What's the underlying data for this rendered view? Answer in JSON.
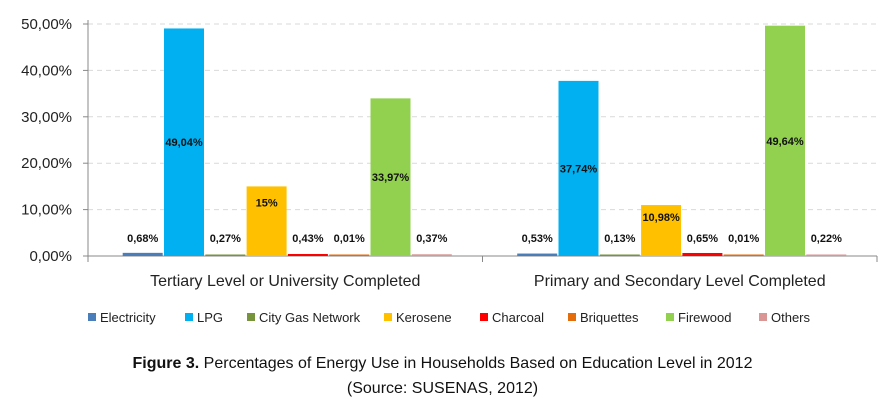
{
  "chart_data": {
    "type": "bar",
    "categories": [
      "Tertiary Level or University Completed",
      "Primary and Secondary Level Completed"
    ],
    "ylim": [
      0,
      50
    ],
    "yticks": [
      "0,00%",
      "10,00%",
      "20,00%",
      "30,00%",
      "40,00%",
      "50,00%"
    ],
    "ytick_values": [
      0,
      10,
      20,
      30,
      40,
      50
    ],
    "grid": true,
    "legend_position": "bottom",
    "series": [
      {
        "name": "Electricity",
        "color": "#4a7ebb",
        "values": [
          0.68,
          0.53
        ],
        "labels": [
          "0,68%",
          "0,53%"
        ]
      },
      {
        "name": "LPG",
        "color": "#00b0f0",
        "values": [
          49.04,
          37.74
        ],
        "labels": [
          "49,04%",
          "37,74%"
        ]
      },
      {
        "name": "City Gas Network",
        "color": "#77933c",
        "values": [
          0.27,
          0.13
        ],
        "labels": [
          "0,27%",
          "0,13%"
        ]
      },
      {
        "name": "Kerosene",
        "color": "#ffc000",
        "values": [
          15,
          10.98
        ],
        "labels": [
          "15%",
          "10,98%"
        ]
      },
      {
        "name": "Charcoal",
        "color": "#ff0000",
        "values": [
          0.43,
          0.65
        ],
        "labels": [
          "0,43%",
          "0,65%"
        ]
      },
      {
        "name": "Briquettes",
        "color": "#e46c0a",
        "values": [
          0.01,
          0.01
        ],
        "labels": [
          "0,01%",
          "0,01%"
        ]
      },
      {
        "name": "Firewood",
        "color": "#92d050",
        "values": [
          33.97,
          49.64
        ],
        "labels": [
          "33,97%",
          "49,64%"
        ]
      },
      {
        "name": "Others",
        "color": "#d99694",
        "values": [
          0.37,
          0.22
        ],
        "labels": [
          "0,37%",
          "0,22%"
        ]
      }
    ]
  },
  "caption": {
    "figure_label": "Figure 3.",
    "title": " Percentages of Energy Use in Households Based on Education Level in 2012",
    "source": "(Source: SUSENAS, 2012)"
  }
}
